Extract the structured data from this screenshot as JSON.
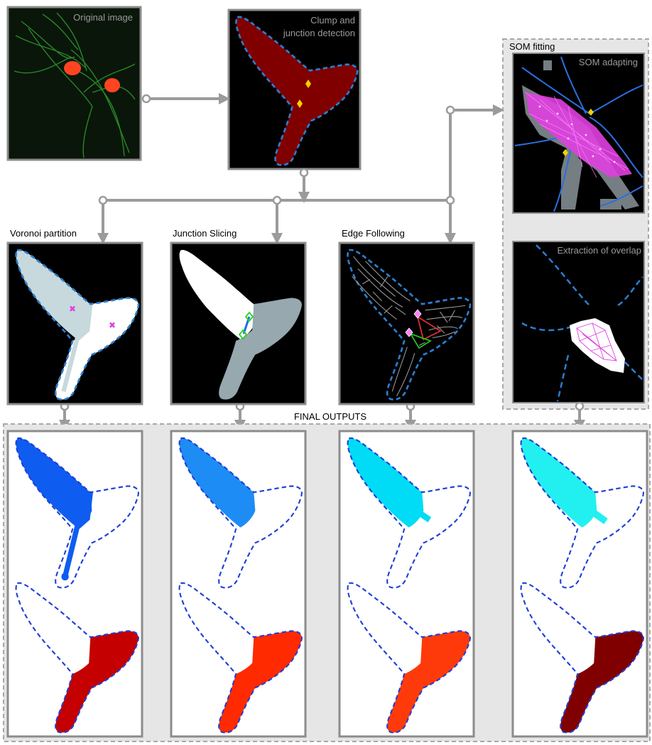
{
  "labels": {
    "original_image": "Original image",
    "clump_line1": "Clump and",
    "clump_line2": "junction detection",
    "som_fitting": "SOM fitting",
    "som_adapting": "SOM adapting",
    "extraction_overlap": "Extraction of overlap",
    "voronoi": "Voronoi partition",
    "junction_slicing": "Junction Slicing",
    "edge_following": "Edge Following",
    "final_outputs": "FINAL OUTPUTS"
  },
  "colors": {
    "arrow": "#9b9b9b",
    "panel_border": "#8c8c8c",
    "clump_fill": "#800000",
    "dashed_outline": "#2a7fd0",
    "junction_marker": "#f5d000",
    "voronoi_left": "#c7d9dc",
    "voronoi_right": "#ffffff",
    "voronoi_marker": "#e040e0",
    "slice_lower": "#97a8ae",
    "final_bg": "#e6e6e6",
    "out_voronoi_top": "#0f5cf0",
    "out_voronoi_bottom": "#c40000",
    "out_slicing_top": "#1e8cf5",
    "out_slicing_bottom": "#ff2a00",
    "out_edge_top": "#00dcf5",
    "out_edge_bottom": "#ff3a0a",
    "out_som_top": "#22f0f0",
    "out_som_bottom": "#800000",
    "outline_dark": "#1f3fd6"
  }
}
